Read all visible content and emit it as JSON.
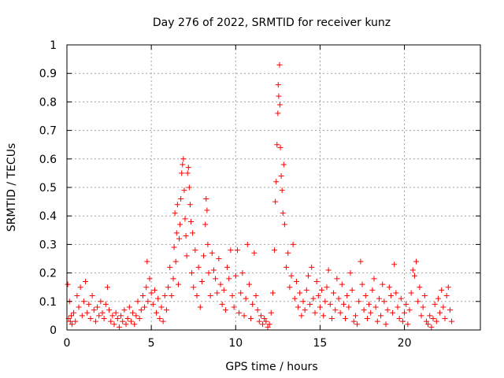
{
  "chart_data": {
    "type": "scatter",
    "title": "Day 276 of 2022, SRMTID for receiver kunz",
    "xlabel": "GPS time / hours",
    "ylabel": "SRMTID / TECUs",
    "xlim": [
      0,
      24.5
    ],
    "ylim": [
      0,
      1
    ],
    "x_ticks": [
      0,
      5,
      10,
      15,
      20
    ],
    "x_tick_labels": [
      "0",
      "5",
      "10",
      "15",
      "20"
    ],
    "y_ticks": [
      0,
      0.1,
      0.2,
      0.3,
      0.4,
      0.5,
      0.6,
      0.7,
      0.8,
      0.9,
      1
    ],
    "y_tick_labels": [
      "0",
      "0.1",
      "0.2",
      "0.3",
      "0.4",
      "0.5",
      "0.6",
      "0.7",
      "0.8",
      "0.9",
      "1"
    ],
    "grid": true,
    "marker": "+",
    "series": [
      {
        "name": "SRMTID",
        "color": "#ff0000",
        "points": [
          [
            0.05,
            0.16
          ],
          [
            0.1,
            0.04
          ],
          [
            0.15,
            0.1
          ],
          [
            0.2,
            0.03
          ],
          [
            0.25,
            0.05
          ],
          [
            0.3,
            0.02
          ],
          [
            0.4,
            0.06
          ],
          [
            0.5,
            0.03
          ],
          [
            0.6,
            0.12
          ],
          [
            0.7,
            0.08
          ],
          [
            0.8,
            0.15
          ],
          [
            0.9,
            0.05
          ],
          [
            1.0,
            0.1
          ],
          [
            1.1,
            0.17
          ],
          [
            1.2,
            0.06
          ],
          [
            1.3,
            0.09
          ],
          [
            1.4,
            0.04
          ],
          [
            1.5,
            0.12
          ],
          [
            1.6,
            0.07
          ],
          [
            1.7,
            0.03
          ],
          [
            1.8,
            0.08
          ],
          [
            1.9,
            0.05
          ],
          [
            2.0,
            0.1
          ],
          [
            2.1,
            0.06
          ],
          [
            2.2,
            0.04
          ],
          [
            2.3,
            0.09
          ],
          [
            2.4,
            0.15
          ],
          [
            2.5,
            0.07
          ],
          [
            2.6,
            0.03
          ],
          [
            2.7,
            0.05
          ],
          [
            2.8,
            0.02
          ],
          [
            2.9,
            0.06
          ],
          [
            3.0,
            0.04
          ],
          [
            3.1,
            0.01
          ],
          [
            3.2,
            0.05
          ],
          [
            3.3,
            0.03
          ],
          [
            3.4,
            0.07
          ],
          [
            3.5,
            0.02
          ],
          [
            3.6,
            0.04
          ],
          [
            3.7,
            0.08
          ],
          [
            3.8,
            0.03
          ],
          [
            3.9,
            0.06
          ],
          [
            4.0,
            0.02
          ],
          [
            4.1,
            0.05
          ],
          [
            4.2,
            0.1
          ],
          [
            4.3,
            0.04
          ],
          [
            4.4,
            0.07
          ],
          [
            4.5,
            0.12
          ],
          [
            4.6,
            0.08
          ],
          [
            4.7,
            0.15
          ],
          [
            4.75,
            0.24
          ],
          [
            4.8,
            0.1
          ],
          [
            4.9,
            0.18
          ],
          [
            5.0,
            0.13
          ],
          [
            5.1,
            0.09
          ],
          [
            5.2,
            0.14
          ],
          [
            5.3,
            0.06
          ],
          [
            5.4,
            0.11
          ],
          [
            5.5,
            0.04
          ],
          [
            5.6,
            0.08
          ],
          [
            5.7,
            0.03
          ],
          [
            5.8,
            0.12
          ],
          [
            5.9,
            0.07
          ],
          [
            6.0,
            0.15
          ],
          [
            6.1,
            0.22
          ],
          [
            6.2,
            0.12
          ],
          [
            6.3,
            0.18
          ],
          [
            6.35,
            0.29
          ],
          [
            6.4,
            0.41
          ],
          [
            6.45,
            0.24
          ],
          [
            6.5,
            0.34
          ],
          [
            6.55,
            0.44
          ],
          [
            6.6,
            0.16
          ],
          [
            6.65,
            0.32
          ],
          [
            6.7,
            0.37
          ],
          [
            6.75,
            0.46
          ],
          [
            6.8,
            0.55
          ],
          [
            6.85,
            0.58
          ],
          [
            6.9,
            0.6
          ],
          [
            6.95,
            0.49
          ],
          [
            7.0,
            0.39
          ],
          [
            7.05,
            0.33
          ],
          [
            7.1,
            0.26
          ],
          [
            7.15,
            0.55
          ],
          [
            7.2,
            0.57
          ],
          [
            7.25,
            0.5
          ],
          [
            7.3,
            0.44
          ],
          [
            7.35,
            0.38
          ],
          [
            7.4,
            0.2
          ],
          [
            7.45,
            0.34
          ],
          [
            7.5,
            0.15
          ],
          [
            7.6,
            0.28
          ],
          [
            7.7,
            0.12
          ],
          [
            7.8,
            0.22
          ],
          [
            7.9,
            0.08
          ],
          [
            8.0,
            0.17
          ],
          [
            8.1,
            0.26
          ],
          [
            8.2,
            0.37
          ],
          [
            8.25,
            0.46
          ],
          [
            8.3,
            0.42
          ],
          [
            8.35,
            0.3
          ],
          [
            8.4,
            0.2
          ],
          [
            8.5,
            0.12
          ],
          [
            8.6,
            0.27
          ],
          [
            8.7,
            0.21
          ],
          [
            8.8,
            0.18
          ],
          [
            8.9,
            0.13
          ],
          [
            9.0,
            0.25
          ],
          [
            9.1,
            0.16
          ],
          [
            9.2,
            0.09
          ],
          [
            9.3,
            0.14
          ],
          [
            9.4,
            0.07
          ],
          [
            9.5,
            0.22
          ],
          [
            9.6,
            0.18
          ],
          [
            9.7,
            0.28
          ],
          [
            9.8,
            0.12
          ],
          [
            9.9,
            0.08
          ],
          [
            10.0,
            0.19
          ],
          [
            10.1,
            0.28
          ],
          [
            10.2,
            0.06
          ],
          [
            10.3,
            0.13
          ],
          [
            10.4,
            0.2
          ],
          [
            10.5,
            0.05
          ],
          [
            10.6,
            0.11
          ],
          [
            10.7,
            0.3
          ],
          [
            10.8,
            0.16
          ],
          [
            10.9,
            0.04
          ],
          [
            11.0,
            0.09
          ],
          [
            11.1,
            0.27
          ],
          [
            11.2,
            0.12
          ],
          [
            11.3,
            0.07
          ],
          [
            11.4,
            0.03
          ],
          [
            11.5,
            0.05
          ],
          [
            11.6,
            0.02
          ],
          [
            11.7,
            0.04
          ],
          [
            11.8,
            0.03
          ],
          [
            11.9,
            0.01
          ],
          [
            12.0,
            0.02
          ],
          [
            12.1,
            0.06
          ],
          [
            12.2,
            0.13
          ],
          [
            12.3,
            0.28
          ],
          [
            12.35,
            0.45
          ],
          [
            12.4,
            0.52
          ],
          [
            12.45,
            0.65
          ],
          [
            12.5,
            0.76
          ],
          [
            12.52,
            0.86
          ],
          [
            12.55,
            0.82
          ],
          [
            12.6,
            0.93
          ],
          [
            12.62,
            0.79
          ],
          [
            12.65,
            0.64
          ],
          [
            12.7,
            0.54
          ],
          [
            12.75,
            0.49
          ],
          [
            12.8,
            0.41
          ],
          [
            12.85,
            0.58
          ],
          [
            12.9,
            0.37
          ],
          [
            13.0,
            0.22
          ],
          [
            13.1,
            0.27
          ],
          [
            13.2,
            0.15
          ],
          [
            13.3,
            0.19
          ],
          [
            13.4,
            0.3
          ],
          [
            13.5,
            0.11
          ],
          [
            13.6,
            0.17
          ],
          [
            13.7,
            0.08
          ],
          [
            13.8,
            0.13
          ],
          [
            13.9,
            0.05
          ],
          [
            14.0,
            0.1
          ],
          [
            14.1,
            0.07
          ],
          [
            14.2,
            0.14
          ],
          [
            14.3,
            0.19
          ],
          [
            14.4,
            0.09
          ],
          [
            14.5,
            0.22
          ],
          [
            14.6,
            0.11
          ],
          [
            14.7,
            0.06
          ],
          [
            14.8,
            0.17
          ],
          [
            14.9,
            0.12
          ],
          [
            15.0,
            0.08
          ],
          [
            15.1,
            0.14
          ],
          [
            15.2,
            0.05
          ],
          [
            15.3,
            0.1
          ],
          [
            15.4,
            0.15
          ],
          [
            15.5,
            0.21
          ],
          [
            15.6,
            0.09
          ],
          [
            15.7,
            0.04
          ],
          [
            15.8,
            0.13
          ],
          [
            15.9,
            0.07
          ],
          [
            16.0,
            0.18
          ],
          [
            16.1,
            0.11
          ],
          [
            16.2,
            0.06
          ],
          [
            16.3,
            0.16
          ],
          [
            16.4,
            0.09
          ],
          [
            16.5,
            0.04
          ],
          [
            16.6,
            0.12
          ],
          [
            16.7,
            0.08
          ],
          [
            16.8,
            0.2
          ],
          [
            16.9,
            0.14
          ],
          [
            17.0,
            0.03
          ],
          [
            17.1,
            0.05
          ],
          [
            17.2,
            0.02
          ],
          [
            17.3,
            0.1
          ],
          [
            17.4,
            0.24
          ],
          [
            17.5,
            0.16
          ],
          [
            17.6,
            0.07
          ],
          [
            17.7,
            0.12
          ],
          [
            17.8,
            0.04
          ],
          [
            17.9,
            0.09
          ],
          [
            18.0,
            0.06
          ],
          [
            18.1,
            0.14
          ],
          [
            18.2,
            0.18
          ],
          [
            18.3,
            0.08
          ],
          [
            18.4,
            0.03
          ],
          [
            18.5,
            0.11
          ],
          [
            18.6,
            0.05
          ],
          [
            18.7,
            0.16
          ],
          [
            18.8,
            0.1
          ],
          [
            18.9,
            0.02
          ],
          [
            19.0,
            0.07
          ],
          [
            19.1,
            0.15
          ],
          [
            19.2,
            0.12
          ],
          [
            19.3,
            0.06
          ],
          [
            19.4,
            0.23
          ],
          [
            19.5,
            0.13
          ],
          [
            19.6,
            0.08
          ],
          [
            19.7,
            0.04
          ],
          [
            19.8,
            0.11
          ],
          [
            19.9,
            0.03
          ],
          [
            20.0,
            0.06
          ],
          [
            20.1,
            0.09
          ],
          [
            20.2,
            0.02
          ],
          [
            20.3,
            0.07
          ],
          [
            20.4,
            0.13
          ],
          [
            20.5,
            0.21
          ],
          [
            20.6,
            0.19
          ],
          [
            20.7,
            0.24
          ],
          [
            20.8,
            0.1
          ],
          [
            20.9,
            0.15
          ],
          [
            21.0,
            0.05
          ],
          [
            21.1,
            0.08
          ],
          [
            21.2,
            0.12
          ],
          [
            21.3,
            0.03
          ],
          [
            21.4,
            0.02
          ],
          [
            21.5,
            0.05
          ],
          [
            21.6,
            0.01
          ],
          [
            21.7,
            0.04
          ],
          [
            21.8,
            0.09
          ],
          [
            21.9,
            0.03
          ],
          [
            22.0,
            0.11
          ],
          [
            22.1,
            0.06
          ],
          [
            22.2,
            0.14
          ],
          [
            22.3,
            0.08
          ],
          [
            22.4,
            0.04
          ],
          [
            22.5,
            0.12
          ],
          [
            22.6,
            0.15
          ],
          [
            22.7,
            0.07
          ],
          [
            22.8,
            0.03
          ]
        ]
      }
    ]
  }
}
